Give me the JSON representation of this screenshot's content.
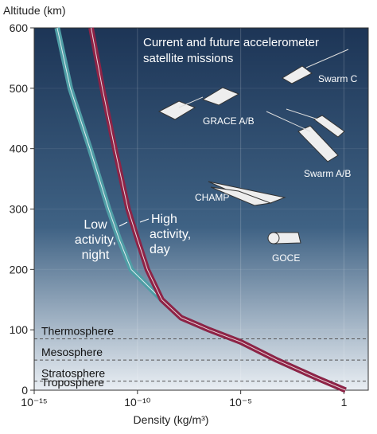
{
  "chart_data": {
    "type": "line",
    "y_axis_title": "Altitude (km)",
    "x_axis_title": "Density (kg/m³)",
    "log_x": true,
    "grid": true,
    "xlim": [
      1e-15,
      15
    ],
    "xticks": [
      {
        "value": 1e-15,
        "label": "10⁻¹⁵"
      },
      {
        "value": 1e-10,
        "label": "10⁻¹⁰"
      },
      {
        "value": 1e-05,
        "label": "10⁻⁵"
      },
      1
    ],
    "ylim": [
      0,
      600
    ],
    "yticks": [
      0,
      100,
      200,
      300,
      400,
      500,
      600
    ],
    "y": [
      0,
      20,
      50,
      80,
      100,
      120,
      150,
      200,
      250,
      300,
      400,
      500,
      600
    ],
    "series": [
      {
        "label_lines": [
          "Low",
          "activity,",
          "night"
        ],
        "color": "#4f9ea6",
        "values": [
          1.2,
          0.05,
          0.00056,
          1e-05,
          3e-07,
          1.3e-08,
          1.5e-09,
          5e-11,
          1.3e-11,
          4e-12,
          5e-13,
          5.6e-14,
          1.3e-14
        ]
      },
      {
        "label_lines": [
          "High",
          "activity,",
          "day"
        ],
        "color": "#8e2346",
        "values": [
          1.2,
          0.05,
          0.00056,
          1e-05,
          3e-07,
          1.3e-08,
          1.5e-09,
          3e-10,
          1e-10,
          3.5e-11,
          8e-12,
          2e-12,
          5.7e-13
        ]
      }
    ],
    "layers": [
      {
        "name": "Thermosphere",
        "bottom": 85
      },
      {
        "name": "Mesosphere",
        "bottom": 50
      },
      {
        "name": "Stratosphere",
        "bottom": 15
      },
      {
        "name": "Troposphere",
        "bottom": 0
      }
    ],
    "missions_title": [
      "Current and future accelerometer",
      "satellite missions"
    ],
    "missions": [
      "Swarm C",
      "GRACE A/B",
      "Swarm A/B",
      "CHAMP",
      "GOCE"
    ]
  }
}
